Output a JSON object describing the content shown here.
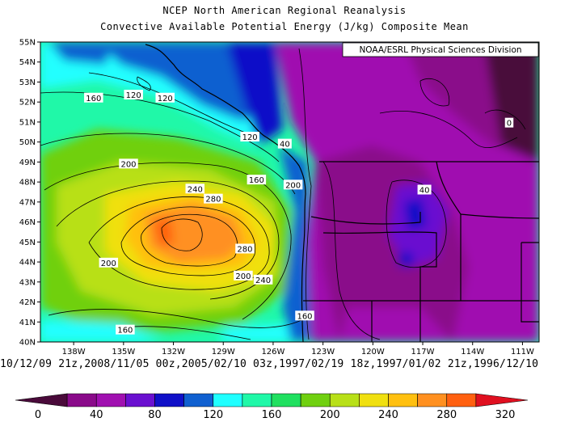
{
  "title_line1": "NCEP North American Regional Reanalysis",
  "title_line2": "Convective Available Potential Energy (J/kg) Composite Mean",
  "credit": "NOAA/ESRL Physical Sciences Division",
  "lat_labels": [
    "55N",
    "54N",
    "53N",
    "52N",
    "51N",
    "50N",
    "49N",
    "48N",
    "47N",
    "46N",
    "45N",
    "44N",
    "43N",
    "42N",
    "41N",
    "40N"
  ],
  "lon_labels": [
    "138W",
    "135W",
    "132W",
    "129W",
    "126W",
    "123W",
    "120W",
    "117W",
    "114W",
    "111W"
  ],
  "contour_labels": [
    {
      "text": "160",
      "lon": -136.8,
      "lat": 52.2
    },
    {
      "text": "120",
      "lon": -134.4,
      "lat": 52.35
    },
    {
      "text": "120",
      "lon": -132.5,
      "lat": 52.2
    },
    {
      "text": "120",
      "lon": -127.4,
      "lat": 50.25
    },
    {
      "text": "40",
      "lon": -125.3,
      "lat": 49.9
    },
    {
      "text": "200",
      "lon": -134.7,
      "lat": 48.9
    },
    {
      "text": "160",
      "lon": -127.0,
      "lat": 48.1
    },
    {
      "text": "200",
      "lon": -124.8,
      "lat": 47.85
    },
    {
      "text": "240",
      "lon": -130.7,
      "lat": 47.65
    },
    {
      "text": "280",
      "lon": -129.6,
      "lat": 47.15
    },
    {
      "text": "40",
      "lon": -116.9,
      "lat": 47.6
    },
    {
      "text": "280",
      "lon": -127.7,
      "lat": 44.65
    },
    {
      "text": "200",
      "lon": -135.9,
      "lat": 43.95
    },
    {
      "text": "200",
      "lon": -127.8,
      "lat": 43.3
    },
    {
      "text": "240",
      "lon": -126.6,
      "lat": 43.1
    },
    {
      "text": "160",
      "lon": -124.1,
      "lat": 41.3
    },
    {
      "text": "160",
      "lon": -134.9,
      "lat": 40.6
    },
    {
      "text": "0",
      "lon": -111.8,
      "lat": 50.95
    }
  ],
  "dates": "10/12/09 21z,2008/11/05 00z,2005/02/10 03z,1997/02/19 18z,1997/01/02 21z,1996/12/10",
  "colorbar": {
    "labels": [
      "0",
      "40",
      "80",
      "120",
      "160",
      "200",
      "240",
      "280",
      "320"
    ],
    "colors": [
      "#4a0a3a",
      "#8a0a8a",
      "#a010b0",
      "#6a10d0",
      "#1010c8",
      "#1060d0",
      "#20ffff",
      "#20f8a8",
      "#20e060",
      "#70d010",
      "#b8e018",
      "#f0e010",
      "#ffc010",
      "#ff9020",
      "#ff6010",
      "#e01020"
    ]
  }
}
